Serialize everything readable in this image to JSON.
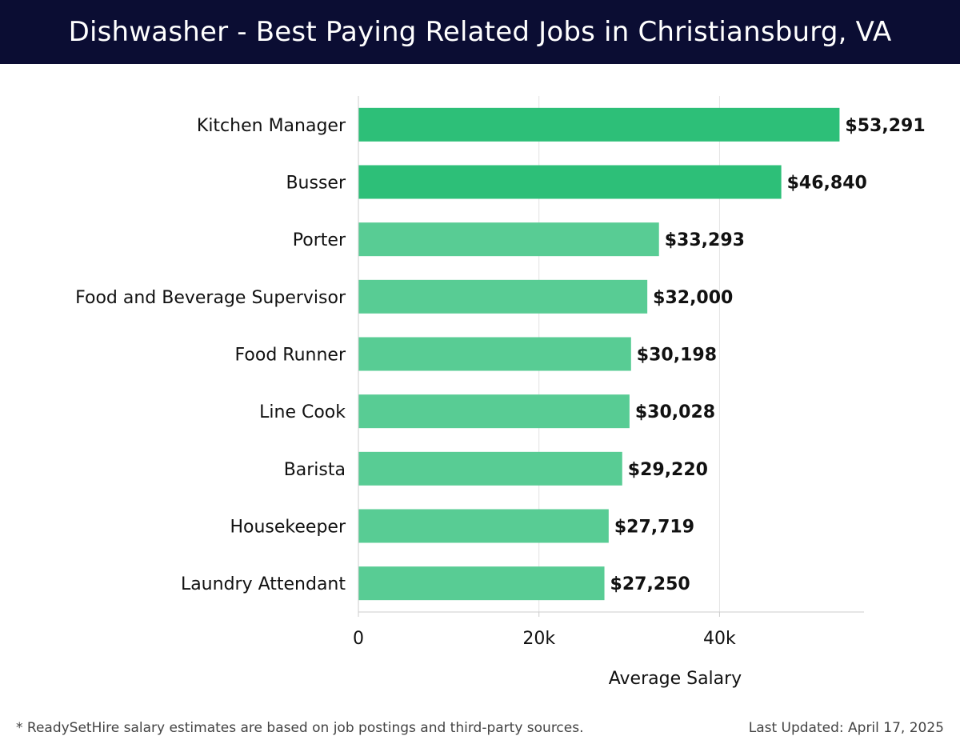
{
  "title": "Dishwasher - Best Paying Related Jobs in Christiansburg, VA",
  "footer": {
    "note": "* ReadySetHire salary estimates are based on job postings and third-party sources.",
    "updated": "Last Updated: April 17, 2025"
  },
  "colors": {
    "header_bg": "#0b0d33",
    "bar_top": "#2dbf78",
    "bar": "#58cc94",
    "grid": "#e3e3e3",
    "axis": "#cccccc",
    "text": "#111111"
  },
  "chart_data": {
    "type": "bar",
    "orientation": "horizontal",
    "categories": [
      "Kitchen Manager",
      "Busser",
      "Porter",
      "Food and Beverage Supervisor",
      "Food Runner",
      "Line Cook",
      "Barista",
      "Housekeeper",
      "Laundry Attendant"
    ],
    "values": [
      53291,
      46840,
      33293,
      32000,
      30198,
      30028,
      29220,
      27719,
      27250
    ],
    "value_labels": [
      "$53,291",
      "$46,840",
      "$33,293",
      "$32,000",
      "$30,198",
      "$30,028",
      "$29,220",
      "$27,719",
      "$27,250"
    ],
    "xlabel": "Average Salary",
    "ylabel": "",
    "xlim": [
      0,
      56000
    ],
    "xticks": [
      0,
      20000,
      40000
    ],
    "xtick_labels": [
      "0",
      "20k",
      "40k"
    ],
    "grid": true
  }
}
